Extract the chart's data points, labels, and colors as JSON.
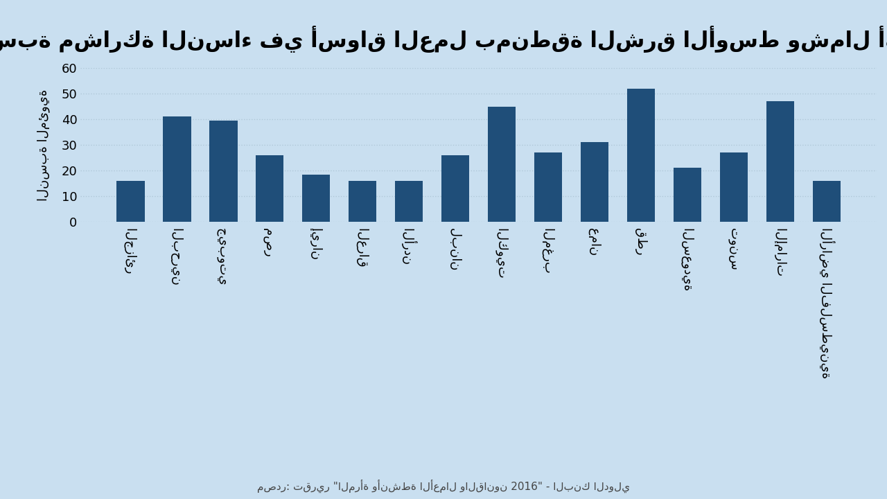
{
  "title": "نسبة مشاركة النساء في أسواق العمل بمنطقة الشرق الأوسط وشمال أفريقيا",
  "ylabel": "النسبة المئوية",
  "source": "مصدر: تقرير \"المرأة وأنشطة الأعمال والقانون 2016\" - البنك الدولي",
  "categories": [
    "الجزائر",
    "البحرين",
    "جيبوتي",
    "مصر",
    "إيران",
    "العراق",
    "الأردن",
    "لبنان",
    "الكويت",
    "المغرب",
    "عمان",
    "قطر",
    "السعودية",
    "تونس",
    "الإمارات",
    "الأراضي الفلسطينية"
  ],
  "values": [
    16,
    41,
    39.5,
    26,
    18.5,
    16,
    16,
    26,
    45,
    27,
    31,
    52,
    21,
    27,
    47,
    16
  ],
  "bar_color": "#1f4e79",
  "background_color": "#c9dff0",
  "ylim": [
    0,
    60
  ],
  "yticks": [
    0,
    10,
    20,
    30,
    40,
    50,
    60
  ],
  "title_fontsize": 22,
  "ylabel_fontsize": 13,
  "tick_fontsize": 13,
  "source_fontsize": 11,
  "grid_color": "#b0c8d8",
  "bar_width": 0.6
}
